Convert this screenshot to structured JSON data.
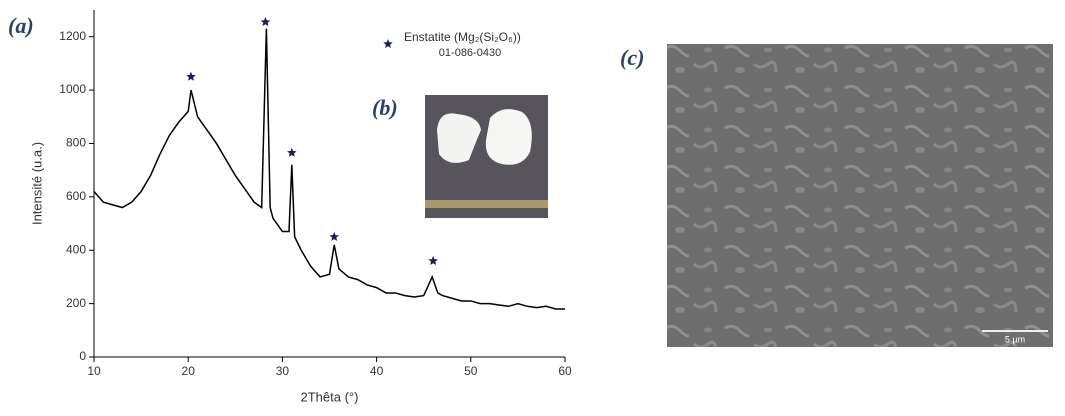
{
  "chart_data": {
    "type": "line",
    "xlabel": "2Thêta (°)",
    "ylabel": "Intensité (u.a.)",
    "xlim": [
      10,
      60
    ],
    "ylim": [
      0,
      1300
    ],
    "xticks": [
      10,
      20,
      30,
      40,
      50,
      60
    ],
    "yticks": [
      0,
      200,
      400,
      600,
      800,
      1000,
      1200
    ],
    "x": [
      10,
      11,
      12,
      13,
      14,
      15,
      16,
      17,
      18,
      19,
      20,
      20.3,
      21,
      22,
      23,
      24,
      25,
      26,
      27,
      27.8,
      28.3,
      28.7,
      29,
      30,
      30.7,
      31,
      31.3,
      32,
      33,
      34,
      35,
      35.5,
      36,
      37,
      38,
      39,
      40,
      41,
      42,
      43,
      44,
      45,
      45.9,
      46.5,
      47,
      48,
      49,
      50,
      51,
      52,
      53,
      54,
      55,
      56,
      57,
      58,
      59,
      60
    ],
    "series": [
      {
        "name": null,
        "color": "#000000",
        "values": [
          620,
          580,
          570,
          560,
          580,
          620,
          680,
          760,
          830,
          880,
          920,
          1000,
          900,
          850,
          800,
          740,
          680,
          630,
          580,
          560,
          1230,
          560,
          520,
          470,
          470,
          720,
          450,
          400,
          340,
          300,
          310,
          420,
          330,
          300,
          290,
          270,
          260,
          240,
          240,
          230,
          225,
          230,
          300,
          240,
          230,
          220,
          210,
          210,
          200,
          200,
          195,
          190,
          200,
          190,
          185,
          190,
          180,
          180
        ]
      },
      {
        "name": "Enstatite (Mg₂(Si₂O₆))",
        "subtitle": "01-086-0430",
        "color": "#1a1f5e",
        "marker": "star",
        "x": [
          20.3,
          28.2,
          31,
          35.5,
          46
        ],
        "values": [
          1050,
          1255,
          765,
          450,
          360
        ]
      }
    ]
  },
  "panels": {
    "a": "(a)",
    "b": "(b)",
    "c": "(c)"
  },
  "scale_bar": "5 µm"
}
